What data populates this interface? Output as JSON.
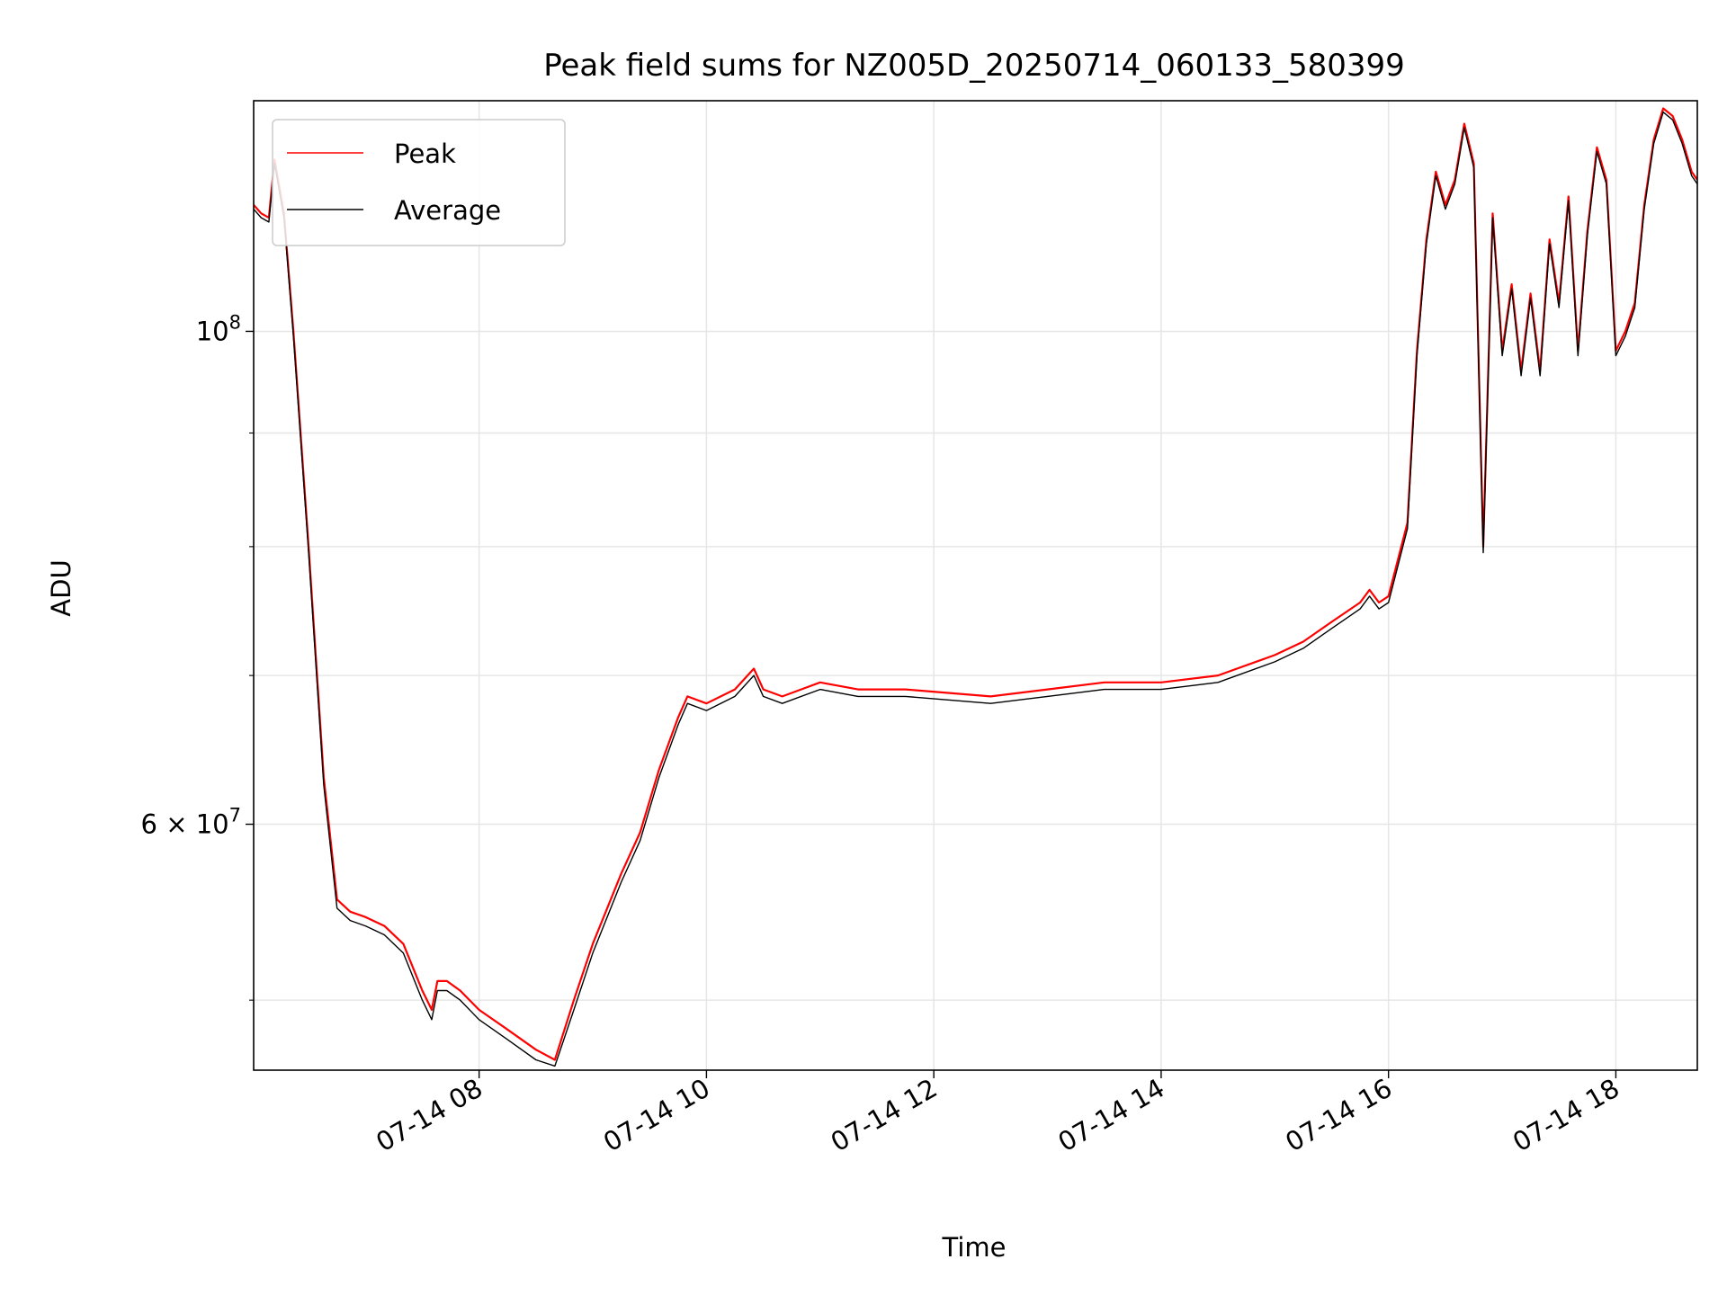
{
  "chart_data": {
    "type": "line",
    "title": "Peak field sums for NZ005D_20250714_060133_580399",
    "xlabel": "Time",
    "ylabel": "ADU",
    "yscale": "log",
    "grid": true,
    "legend_position": "top-left",
    "xlim": [
      "2025-07-14 06:01",
      "2025-07-14 18:43"
    ],
    "ylim": [
      46500000,
      127000000
    ],
    "x_ticks": [
      "07-14 08",
      "07-14 10",
      "07-14 12",
      "07-14 14",
      "07-14 16",
      "07-14 18"
    ],
    "x_tick_times": [
      "2025-07-14 08:00",
      "2025-07-14 10:00",
      "2025-07-14 12:00",
      "2025-07-14 14:00",
      "2025-07-14 16:00",
      "2025-07-14 18:00"
    ],
    "y_major_ticks": [
      {
        "value": 100000000,
        "base": "10",
        "exp": "8",
        "mant": ""
      },
      {
        "value": 60000000,
        "base": "10",
        "exp": "7",
        "mant": "6 × "
      }
    ],
    "y_minor_ticks": [
      50000000,
      70000000,
      80000000,
      90000000
    ],
    "series": [
      {
        "name": "Peak",
        "color": "#ff0000",
        "x": [
          "2025-07-14 06:01",
          "2025-07-14 06:05",
          "2025-07-14 06:09",
          "2025-07-14 06:12",
          "2025-07-14 06:17",
          "2025-07-14 06:22",
          "2025-07-14 06:30",
          "2025-07-14 06:38",
          "2025-07-14 06:45",
          "2025-07-14 06:52",
          "2025-07-14 07:00",
          "2025-07-14 07:10",
          "2025-07-14 07:20",
          "2025-07-14 07:30",
          "2025-07-14 07:35",
          "2025-07-14 07:38",
          "2025-07-14 07:43",
          "2025-07-14 07:50",
          "2025-07-14 08:00",
          "2025-07-14 08:15",
          "2025-07-14 08:30",
          "2025-07-14 08:40",
          "2025-07-14 08:50",
          "2025-07-14 09:00",
          "2025-07-14 09:15",
          "2025-07-14 09:25",
          "2025-07-14 09:35",
          "2025-07-14 09:45",
          "2025-07-14 09:50",
          "2025-07-14 10:00",
          "2025-07-14 10:15",
          "2025-07-14 10:25",
          "2025-07-14 10:30",
          "2025-07-14 10:40",
          "2025-07-14 11:00",
          "2025-07-14 11:20",
          "2025-07-14 11:45",
          "2025-07-14 12:30",
          "2025-07-14 13:00",
          "2025-07-14 13:30",
          "2025-07-14 14:00",
          "2025-07-14 14:30",
          "2025-07-14 15:00",
          "2025-07-14 15:15",
          "2025-07-14 15:30",
          "2025-07-14 15:45",
          "2025-07-14 15:50",
          "2025-07-14 15:55",
          "2025-07-14 16:00",
          "2025-07-14 16:10",
          "2025-07-14 16:15",
          "2025-07-14 16:20",
          "2025-07-14 16:25",
          "2025-07-14 16:30",
          "2025-07-14 16:35",
          "2025-07-14 16:40",
          "2025-07-14 16:45",
          "2025-07-14 16:50",
          "2025-07-14 16:55",
          "2025-07-14 17:00",
          "2025-07-14 17:05",
          "2025-07-14 17:10",
          "2025-07-14 17:15",
          "2025-07-14 17:20",
          "2025-07-14 17:25",
          "2025-07-14 17:30",
          "2025-07-14 17:35",
          "2025-07-14 17:40",
          "2025-07-14 17:45",
          "2025-07-14 17:50",
          "2025-07-14 17:55",
          "2025-07-14 18:00",
          "2025-07-14 18:05",
          "2025-07-14 18:10",
          "2025-07-14 18:15",
          "2025-07-14 18:20",
          "2025-07-14 18:25",
          "2025-07-14 18:30",
          "2025-07-14 18:35",
          "2025-07-14 18:40",
          "2025-07-14 18:43"
        ],
        "y": [
          114000000,
          113000000,
          112500000,
          119500000,
          113000000,
          100000000,
          80000000,
          63000000,
          55500000,
          54800000,
          54500000,
          54000000,
          53000000,
          50500000,
          49500000,
          51000000,
          51000000,
          50500000,
          49500000,
          48500000,
          47500000,
          47000000,
          50000000,
          53000000,
          57000000,
          59500000,
          63500000,
          67000000,
          68500000,
          68000000,
          69000000,
          70500000,
          69000000,
          68500000,
          69500000,
          69000000,
          69000000,
          68500000,
          69000000,
          69500000,
          69500000,
          70000000,
          71500000,
          72500000,
          74000000,
          75500000,
          76500000,
          75500000,
          76000000,
          82000000,
          98000000,
          110000000,
          118000000,
          114000000,
          117000000,
          124000000,
          119000000,
          80000000,
          113000000,
          98000000,
          105000000,
          96000000,
          104000000,
          96000000,
          110000000,
          103000000,
          115000000,
          98000000,
          111000000,
          121000000,
          117000000,
          98000000,
          100000000,
          103000000,
          114000000,
          122000000,
          126000000,
          125000000,
          122000000,
          118000000,
          117000000
        ]
      },
      {
        "name": "Average",
        "color": "#000000",
        "x": [
          "2025-07-14 06:01",
          "2025-07-14 06:05",
          "2025-07-14 06:09",
          "2025-07-14 06:12",
          "2025-07-14 06:17",
          "2025-07-14 06:22",
          "2025-07-14 06:30",
          "2025-07-14 06:38",
          "2025-07-14 06:45",
          "2025-07-14 06:52",
          "2025-07-14 07:00",
          "2025-07-14 07:10",
          "2025-07-14 07:20",
          "2025-07-14 07:30",
          "2025-07-14 07:35",
          "2025-07-14 07:38",
          "2025-07-14 07:43",
          "2025-07-14 07:50",
          "2025-07-14 08:00",
          "2025-07-14 08:15",
          "2025-07-14 08:30",
          "2025-07-14 08:40",
          "2025-07-14 08:50",
          "2025-07-14 09:00",
          "2025-07-14 09:15",
          "2025-07-14 09:25",
          "2025-07-14 09:35",
          "2025-07-14 09:45",
          "2025-07-14 09:50",
          "2025-07-14 10:00",
          "2025-07-14 10:15",
          "2025-07-14 10:25",
          "2025-07-14 10:30",
          "2025-07-14 10:40",
          "2025-07-14 11:00",
          "2025-07-14 11:20",
          "2025-07-14 11:45",
          "2025-07-14 12:30",
          "2025-07-14 13:00",
          "2025-07-14 13:30",
          "2025-07-14 14:00",
          "2025-07-14 14:30",
          "2025-07-14 15:00",
          "2025-07-14 15:15",
          "2025-07-14 15:30",
          "2025-07-14 15:45",
          "2025-07-14 15:50",
          "2025-07-14 15:55",
          "2025-07-14 16:00",
          "2025-07-14 16:10",
          "2025-07-14 16:15",
          "2025-07-14 16:20",
          "2025-07-14 16:25",
          "2025-07-14 16:30",
          "2025-07-14 16:35",
          "2025-07-14 16:40",
          "2025-07-14 16:45",
          "2025-07-14 16:50",
          "2025-07-14 16:55",
          "2025-07-14 17:00",
          "2025-07-14 17:05",
          "2025-07-14 17:10",
          "2025-07-14 17:15",
          "2025-07-14 17:20",
          "2025-07-14 17:25",
          "2025-07-14 17:30",
          "2025-07-14 17:35",
          "2025-07-14 17:40",
          "2025-07-14 17:45",
          "2025-07-14 17:50",
          "2025-07-14 17:55",
          "2025-07-14 18:00",
          "2025-07-14 18:05",
          "2025-07-14 18:10",
          "2025-07-14 18:15",
          "2025-07-14 18:20",
          "2025-07-14 18:25",
          "2025-07-14 18:30",
          "2025-07-14 18:35",
          "2025-07-14 18:40",
          "2025-07-14 18:43"
        ],
        "y": [
          113500000,
          112500000,
          112000000,
          119000000,
          112500000,
          99500000,
          79500000,
          62500000,
          55000000,
          54300000,
          54000000,
          53500000,
          52500000,
          50000000,
          49000000,
          50500000,
          50500000,
          50000000,
          49000000,
          48000000,
          47000000,
          46700000,
          49500000,
          52500000,
          56500000,
          59000000,
          63000000,
          66500000,
          68000000,
          67500000,
          68500000,
          70000000,
          68500000,
          68000000,
          69000000,
          68500000,
          68500000,
          68000000,
          68500000,
          69000000,
          69000000,
          69500000,
          71000000,
          72000000,
          73500000,
          75000000,
          76000000,
          75000000,
          75500000,
          81500000,
          97500000,
          109500000,
          117500000,
          113500000,
          116500000,
          123500000,
          118500000,
          79500000,
          112500000,
          97500000,
          104500000,
          95500000,
          103500000,
          95500000,
          109500000,
          102500000,
          114500000,
          97500000,
          110500000,
          120500000,
          116500000,
          97500000,
          99500000,
          102500000,
          113500000,
          121500000,
          125500000,
          124500000,
          121500000,
          117500000,
          116500000
        ]
      }
    ]
  }
}
